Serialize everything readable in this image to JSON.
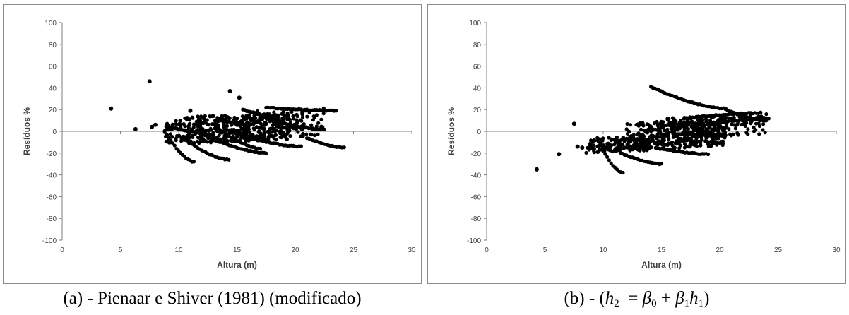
{
  "chart_data": [
    {
      "type": "scatter",
      "title": "",
      "xlabel": "Altura (m)",
      "ylabel": "Resíduos %",
      "xlim": [
        0,
        30
      ],
      "ylim": [
        -100,
        100
      ],
      "xticks": [
        0,
        5,
        10,
        15,
        20,
        25,
        30
      ],
      "yticks": [
        100,
        80,
        60,
        40,
        20,
        0,
        -20,
        -40,
        -60,
        -80,
        -100
      ],
      "grid": false,
      "legend": "none",
      "marker_color": "#000000",
      "caption": "(a) - Pienaar e Shiver (1981) (modificado)",
      "isolated_points": [
        [
          4.2,
          21
        ],
        [
          6.3,
          2
        ],
        [
          7.5,
          46
        ],
        [
          7.7,
          4
        ],
        [
          8.0,
          6
        ],
        [
          14.4,
          37
        ],
        [
          15.2,
          31
        ],
        [
          11.0,
          19
        ]
      ],
      "curves": [
        {
          "x": [
            9.0,
            11.3
          ],
          "y": [
            -3,
            -28
          ]
        },
        {
          "x": [
            10.5,
            14.3
          ],
          "y": [
            -7,
            -26
          ]
        },
        {
          "x": [
            12.5,
            17.5
          ],
          "y": [
            -5,
            -20
          ]
        },
        {
          "x": [
            13.5,
            17.0
          ],
          "y": [
            2,
            -16
          ]
        },
        {
          "x": [
            14.5,
            20.5
          ],
          "y": [
            -1,
            -14
          ]
        },
        {
          "x": [
            21.0,
            24.2
          ],
          "y": [
            -6,
            -15
          ]
        },
        {
          "x": [
            18.0,
            22.5
          ],
          "y": [
            10,
            2
          ]
        },
        {
          "x": [
            17.5,
            23.5
          ],
          "y": [
            22,
            19
          ]
        },
        {
          "x": [
            9.0,
            13.0
          ],
          "y": [
            5,
            -3
          ]
        },
        {
          "x": [
            15.5,
            18.5
          ],
          "y": [
            20,
            13
          ]
        }
      ],
      "clusters": [
        {
          "x": [
            8.8,
            19.5
          ],
          "y": [
            -12,
            17
          ],
          "count": 420
        },
        {
          "x": [
            15.0,
            22.5
          ],
          "y": [
            -8,
            22
          ],
          "count": 160
        }
      ]
    },
    {
      "type": "scatter",
      "title": "",
      "xlabel": "Altura (m)",
      "ylabel": "Resíduos %",
      "xlim": [
        0,
        30
      ],
      "ylim": [
        -100,
        100
      ],
      "xticks": [
        0,
        5,
        10,
        15,
        20,
        25,
        30
      ],
      "yticks": [
        100,
        80,
        60,
        40,
        20,
        0,
        -20,
        -40,
        -60,
        -80,
        -100
      ],
      "grid": false,
      "legend": "none",
      "marker_color": "#000000",
      "caption": "(b) - (h2 = β0 + β1h1)",
      "isolated_points": [
        [
          4.3,
          -35
        ],
        [
          6.2,
          -21
        ],
        [
          7.5,
          7
        ],
        [
          7.8,
          -14
        ],
        [
          8.2,
          -15
        ]
      ],
      "curves": [
        {
          "x": [
            14.1,
            20.5
          ],
          "y": [
            41,
            21
          ]
        },
        {
          "x": [
            10.0,
            11.7
          ],
          "y": [
            -18,
            -38
          ]
        },
        {
          "x": [
            11.5,
            15.0
          ],
          "y": [
            -20,
            -30
          ]
        },
        {
          "x": [
            14.5,
            19.0
          ],
          "y": [
            -15,
            -21
          ]
        },
        {
          "x": [
            16.0,
            20.5
          ],
          "y": [
            -2,
            -4
          ]
        },
        {
          "x": [
            19.0,
            24.2
          ],
          "y": [
            7,
            12
          ]
        },
        {
          "x": [
            17.0,
            23.5
          ],
          "y": [
            12,
            17
          ]
        },
        {
          "x": [
            20.5,
            24.0
          ],
          "y": [
            20,
            10
          ]
        }
      ],
      "clusters": [
        {
          "x": [
            8.5,
            14.0
          ],
          "y": [
            -20,
            -4
          ],
          "count": 160
        },
        {
          "x": [
            12.0,
            20.5
          ],
          "y": [
            -18,
            12
          ],
          "count": 360
        },
        {
          "x": [
            15.5,
            24.0
          ],
          "y": [
            -6,
            16
          ],
          "count": 160
        }
      ]
    }
  ]
}
